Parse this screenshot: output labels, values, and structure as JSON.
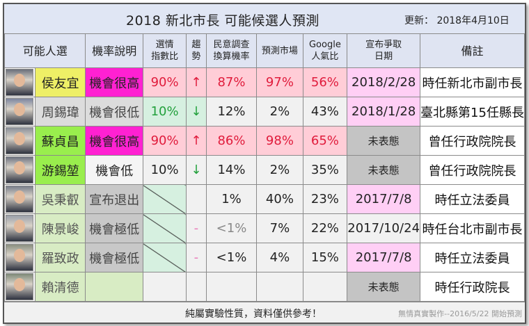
{
  "header": {
    "title": "2018  新北市長  可能候選人預測",
    "updated": "更新：  2018年4月10日"
  },
  "columns": {
    "candidate": "可能人選",
    "prob": "機率說明",
    "index": [
      "選情",
      "指數比"
    ],
    "trend": [
      "趨",
      "勢"
    ],
    "poll": [
      "民意調查",
      "換算機率"
    ],
    "market": "預測市場",
    "google": [
      "Google",
      "人氣比"
    ],
    "announce": [
      "宣布爭取",
      "日期"
    ],
    "note": "備註"
  },
  "rows": [
    {
      "name": "侯友宜",
      "prob": "機會很高",
      "index": "90%",
      "trend": "↑",
      "poll": "87%",
      "market": "97%",
      "google": "56%",
      "announce": "2018/2/28",
      "note": "時任新北市副市長"
    },
    {
      "name": "周錫瑋",
      "prob": "機會很低",
      "index": "10%",
      "trend": "↓",
      "poll": "12%",
      "market": "2%",
      "google": "43%",
      "announce": "2018/1/28",
      "note": "臺北縣第15任縣長"
    },
    {
      "name": "蘇貞昌",
      "prob": "機會很高",
      "index": "90%",
      "trend": "↑",
      "poll": "86%",
      "market": "98%",
      "google": "65%",
      "announce": "未表態",
      "note": "曾任行政院院長"
    },
    {
      "name": "游錫堃",
      "prob": "機會低",
      "index": "10%",
      "trend": "↓",
      "poll": "14%",
      "market": "2%",
      "google": "35%",
      "announce": "未表態",
      "note": "曾任行政院院長"
    },
    {
      "name": "吳秉叡",
      "prob": "宣布退出",
      "index": "",
      "trend": "",
      "poll": "1%",
      "market": "40%",
      "google": "23%",
      "announce": "2017/7/8",
      "note": "時任立法委員"
    },
    {
      "name": "陳景峻",
      "prob": "機會極低",
      "index": "",
      "trend": "-",
      "poll": "<1%",
      "market": "7%",
      "google": "22%",
      "announce": "2017/10/24",
      "note": "時任台北市副市長"
    },
    {
      "name": "羅致政",
      "prob": "機會極低",
      "index": "",
      "trend": "-",
      "poll": "<1%",
      "market": "4%",
      "google": "15%",
      "announce": "2017/7/8",
      "note": "時任立法委員"
    },
    {
      "name": "賴清德",
      "prob": "",
      "index": "",
      "trend": "",
      "poll": "",
      "market": "",
      "google": "",
      "announce": "未表態",
      "note": "時任行政院長"
    }
  ],
  "footer": {
    "note": "純屬實驗性質，資料僅供參考！",
    "credit": "無情真實製作--2016/5/22 開始預測"
  },
  "colors": {
    "kmt_name": "#eeef66",
    "dpp_name": "#99ee4d",
    "high_prob": "#ff21d2",
    "red_text": "#e01b3b",
    "green_text": "#22a03c",
    "pink_cell": "#ffcdd7",
    "green_cell": "#d6f0e0",
    "announce_pink": "#ffcff5",
    "announce_gray": "#c4c4c4"
  }
}
